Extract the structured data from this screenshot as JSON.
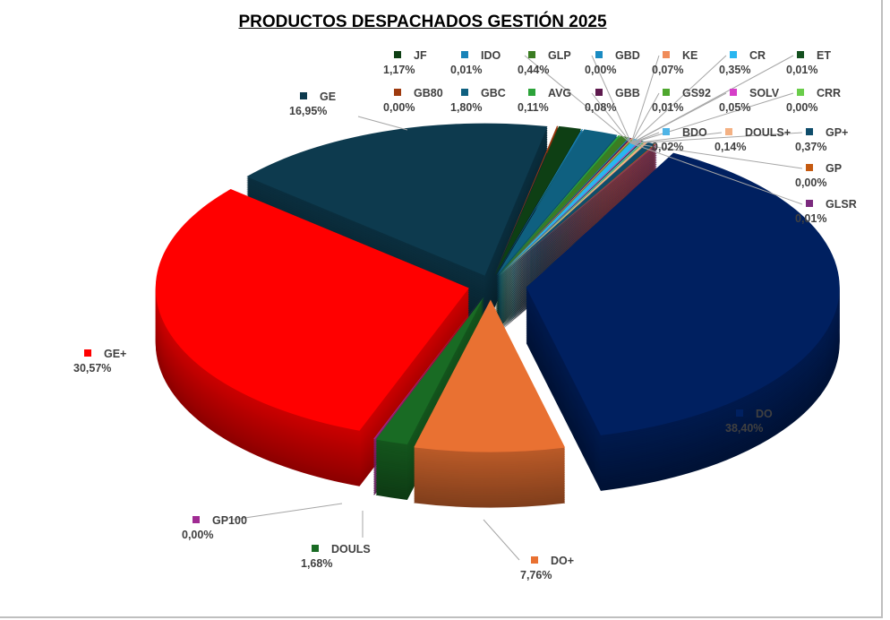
{
  "chart_data": {
    "type": "pie",
    "style": "3d-exploded",
    "title": "PRODUCTOS DESPACHADOS GESTIÓN 2025",
    "slices": [
      {
        "label": "DO",
        "value": 38.4,
        "display": "38,40%",
        "color": "#002060",
        "explode": 40
      },
      {
        "label": "DO+",
        "value": 7.76,
        "display": "7,76%",
        "color": "#E97132",
        "explode": 30
      },
      {
        "label": "DOULS",
        "value": 1.68,
        "display": "1,68%",
        "color": "#196B24",
        "explode": 25
      },
      {
        "label": "GP100",
        "value": 0.0,
        "display": "0,00%",
        "color": "#A02B93",
        "explode": 25
      },
      {
        "label": "GE+",
        "value": 30.57,
        "display": "30,57%",
        "color": "#FF0000",
        "explode": 25
      },
      {
        "label": "GE",
        "value": 16.95,
        "display": "16,95%",
        "color": "#0D3A4E",
        "explode": 20
      },
      {
        "label": "GB80",
        "value": 0.0,
        "display": "0,00%",
        "color": "#9E3A0F",
        "explode": 20
      },
      {
        "label": "JF",
        "value": 1.17,
        "display": "1,17%",
        "color": "#0E3F14",
        "explode": 20
      },
      {
        "label": "IDO",
        "value": 0.01,
        "display": "0,01%",
        "color": "#1883B8",
        "explode": 20
      },
      {
        "label": "GBC",
        "value": 1.8,
        "display": "1,80%",
        "color": "#0F6080",
        "explode": 20
      },
      {
        "label": "AVG",
        "value": 0.11,
        "display": "0,11%",
        "color": "#2CA33A",
        "explode": 20
      },
      {
        "label": "GLP",
        "value": 0.44,
        "display": "0,44%",
        "color": "#3B7D23",
        "explode": 20
      },
      {
        "label": "GBD",
        "value": 0.0,
        "display": "0,00%",
        "color": "#1A8BC2",
        "explode": 20
      },
      {
        "label": "GBB",
        "value": 0.08,
        "display": "0,08%",
        "color": "#5E1A4E",
        "explode": 20
      },
      {
        "label": "KE",
        "value": 0.07,
        "display": "0,07%",
        "color": "#F08C5A",
        "explode": 20
      },
      {
        "label": "GS92",
        "value": 0.01,
        "display": "0,01%",
        "color": "#4EA72E",
        "explode": 20
      },
      {
        "label": "CR",
        "value": 0.35,
        "display": "0,35%",
        "color": "#29B6F0",
        "explode": 20
      },
      {
        "label": "SOLV",
        "value": 0.05,
        "display": "0,05%",
        "color": "#D63FC8",
        "explode": 20
      },
      {
        "label": "ET",
        "value": 0.01,
        "display": "0,01%",
        "color": "#14501F",
        "explode": 20
      },
      {
        "label": "BDO",
        "value": 0.02,
        "display": "0,02%",
        "color": "#4FB4E6",
        "explode": 20
      },
      {
        "label": "CRR",
        "value": 0.0,
        "display": "0,00%",
        "color": "#6ACD4A",
        "explode": 20
      },
      {
        "label": "DOULS+",
        "value": 0.14,
        "display": "0,14%",
        "color": "#F4B183",
        "explode": 20
      },
      {
        "label": "GP+",
        "value": 0.37,
        "display": "0,37%",
        "color": "#0F4D6B",
        "explode": 20
      },
      {
        "label": "GP",
        "value": 0.0,
        "display": "0,00%",
        "color": "#C55A11",
        "explode": 20
      },
      {
        "label": "GLSR",
        "value": 0.01,
        "display": "0,01%",
        "color": "#7B2A7E",
        "explode": 20
      }
    ],
    "legend": "none",
    "data_labels": "category and percentage"
  }
}
